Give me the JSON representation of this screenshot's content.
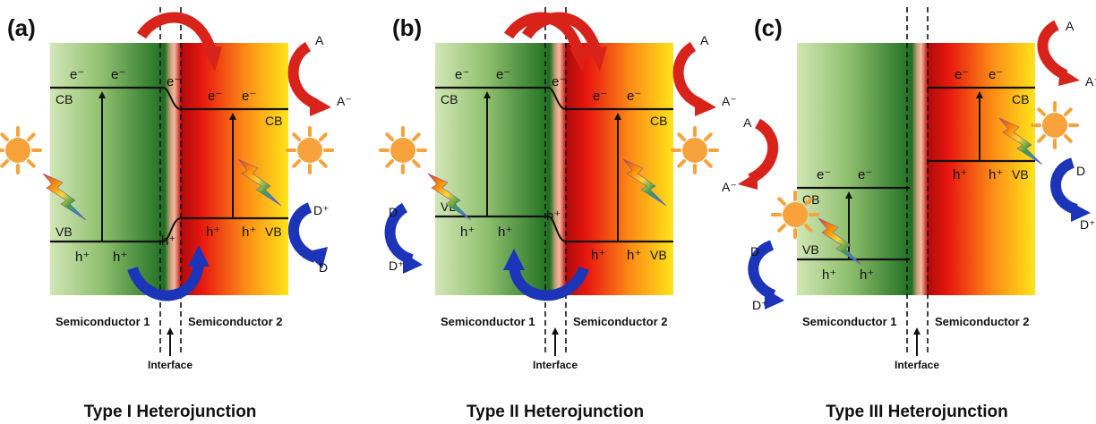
{
  "panels": [
    {
      "label": "(a)",
      "title": "Type I Heterojunction",
      "semiconductor_1": "Semiconductor 1",
      "semiconductor_2": "Semiconductor 2",
      "interface": "Interface",
      "cb": "CB",
      "vb": "VB",
      "electron": "e⁻",
      "hole": "h⁺",
      "acceptor": "A",
      "acceptor_reduced": "A⁻",
      "donor": "D",
      "donor_oxidized": "D⁺"
    },
    {
      "label": "(b)",
      "title": "Type II Heterojunction",
      "semiconductor_1": "Semiconductor 1",
      "semiconductor_2": "Semiconductor 2",
      "interface": "Interface",
      "cb": "CB",
      "vb": "VB",
      "electron": "e⁻",
      "hole": "h⁺",
      "acceptor": "A",
      "acceptor_reduced": "A⁻",
      "donor": "D",
      "donor_oxidized": "D⁺"
    },
    {
      "label": "(c)",
      "title": "Type III Heterojunction",
      "semiconductor_1": "Semiconductor 1",
      "semiconductor_2": "Semiconductor 2",
      "interface": "Interface",
      "cb": "CB",
      "vb": "VB",
      "electron": "e⁻",
      "hole": "h⁺",
      "acceptor": "A",
      "acceptor_reduced": "A⁻",
      "donor": "D",
      "donor_oxidized": "D⁺"
    }
  ],
  "colors": {
    "sc1_light": "#cfe3b2",
    "sc1_dark": "#1f6e22",
    "sc2_red": "#e2140e",
    "sc2_yellow": "#ffe21a",
    "red_arrow": "#d8231b",
    "blue_arrow": "#1b34b8",
    "sun": "#f7a23b"
  }
}
